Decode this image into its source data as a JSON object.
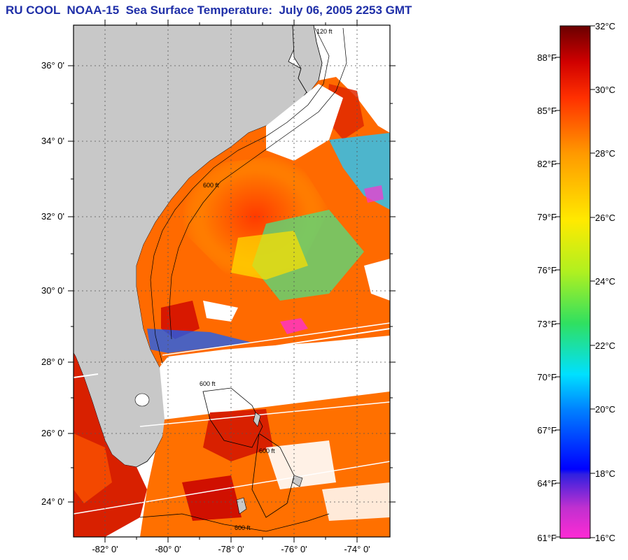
{
  "header": {
    "title": "RU COOL  NOAA-15  Sea Surface Temperature:  July 06, 2005 2253 GMT"
  },
  "map": {
    "lat_labels": [
      "36° 0'",
      "34° 0'",
      "32° 0'",
      "30° 0'",
      "28° 0'",
      "26° 0'",
      "24° 0'"
    ],
    "lon_labels": [
      "-82° 0'",
      "-80° 0'",
      "-78° 0'",
      "-76° 0'",
      "-74° 0'"
    ],
    "lat_range": [
      23,
      37
    ],
    "lon_range": [
      -83,
      -73
    ],
    "land_color": "#c8c8c8",
    "no_data_color": "#ffffff",
    "depth_labels": [
      "120 ft",
      "600 ft",
      "600 ft",
      "600 ft",
      "600 ft"
    ]
  },
  "colorbar": {
    "celsius_labels": [
      "32°C",
      "30°C",
      "28°C",
      "26°C",
      "24°C",
      "22°C",
      "20°C",
      "18°C",
      "16°C"
    ],
    "fahrenheit_labels": [
      "88°F",
      "85°F",
      "82°F",
      "79°F",
      "76°F",
      "73°F",
      "70°F",
      "67°F",
      "64°F",
      "61°F"
    ],
    "range_c": [
      16,
      32
    ],
    "colors": [
      "#ff2ad4",
      "#8a2bc8",
      "#0000ff",
      "#00a0ff",
      "#00ffff",
      "#30e060",
      "#d8f000",
      "#ffd000",
      "#ff8000",
      "#ff2a00",
      "#c00000",
      "#6a0000"
    ]
  }
}
